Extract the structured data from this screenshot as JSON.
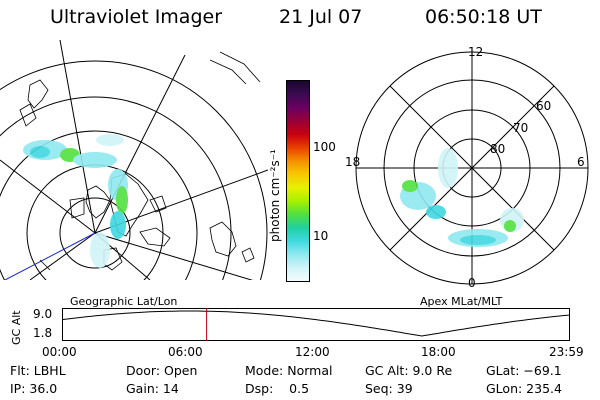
{
  "header": {
    "title": "Ultraviolet Imager",
    "date": "21 Jul 07",
    "time": "06:50:18 UT"
  },
  "left_panel": {
    "label": "Geographic Lat/Lon"
  },
  "right_panel": {
    "label": "Apex MLat/MLT",
    "mlt_labels": [
      "12",
      "18",
      "6",
      "0"
    ],
    "lat_labels": [
      "60",
      "70",
      "80"
    ]
  },
  "colorbar": {
    "unit_label": "photon cm⁻²s⁻¹",
    "ticks": [
      "100",
      "10"
    ],
    "colors_top_to_bottom": [
      "#1a0830",
      "#3a0a50",
      "#6a0060",
      "#980038",
      "#c80010",
      "#e84000",
      "#f59000",
      "#f8c800",
      "#e8f000",
      "#a8f000",
      "#50e040",
      "#20d0a0",
      "#40d8e0",
      "#90e8f0",
      "#d0f4f8",
      "#f4fcfc"
    ]
  },
  "timeline": {
    "axis_title": "GC Alt",
    "y_ticks": [
      "9.0",
      "1.8"
    ],
    "x_ticks": [
      "00:00",
      "06:00",
      "12:00",
      "18:00",
      "23:59"
    ],
    "cursor_time": "06:50",
    "cursor_color": "#c00000"
  },
  "status": {
    "flt": "Flt: LBHL",
    "ip": "IP: 36.0",
    "door": "Door: Open",
    "gain": "Gain: 14",
    "mode": "Mode: Normal",
    "dsp": "Dsp:    0.5",
    "gcalt": "GC Alt: 9.0 Re",
    "seq": "Seq: 39",
    "glat": "GLat: −69.1",
    "glon": "GLon: 235.4"
  }
}
